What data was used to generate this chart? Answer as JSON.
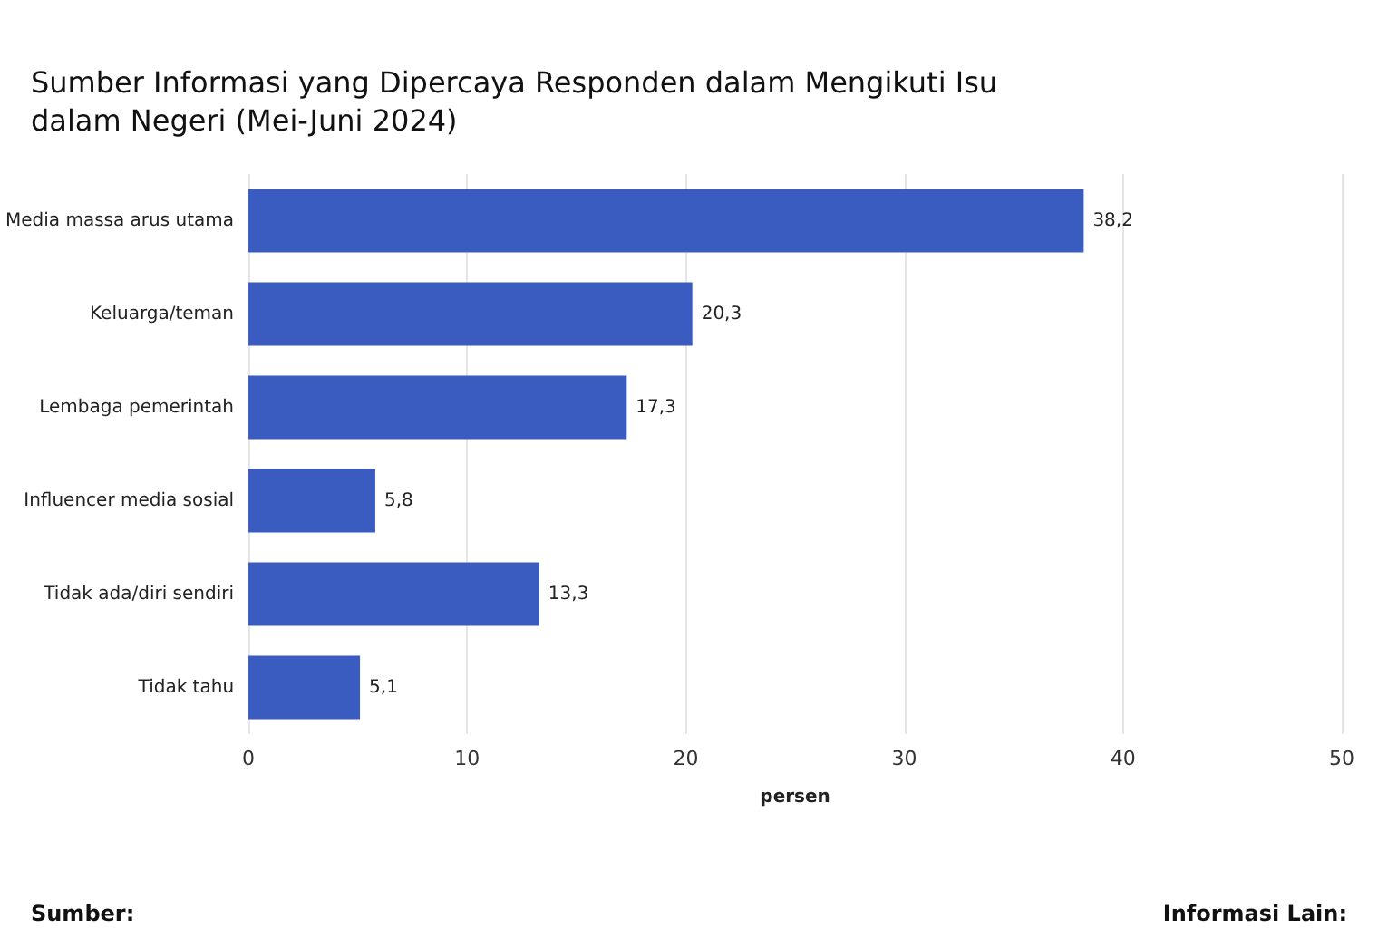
{
  "chart_data": {
    "type": "bar",
    "orientation": "horizontal",
    "title": "Sumber Informasi yang Dipercaya Responden dalam Mengikuti Isu dalam Negeri (Mei-Juni 2024)",
    "xlabel": "persen",
    "categories": [
      "Media massa arus utama",
      "Keluarga/teman",
      "Lembaga pemerintah",
      "Influencer media sosial",
      "Tidak ada/diri sendiri",
      "Tidak tahu"
    ],
    "values": [
      38.2,
      20.3,
      17.3,
      5.8,
      13.3,
      5.1
    ],
    "value_labels": [
      "38,2",
      "20,3",
      "17,3",
      "5,8",
      "13,3",
      "5,1"
    ],
    "color": "#3a5bbf",
    "xlim": [
      0,
      50
    ],
    "xticks": [
      0,
      10,
      20,
      30,
      40,
      50
    ],
    "grid": "x",
    "annotations": [
      "Sumber:",
      "Informasi Lain:"
    ]
  }
}
